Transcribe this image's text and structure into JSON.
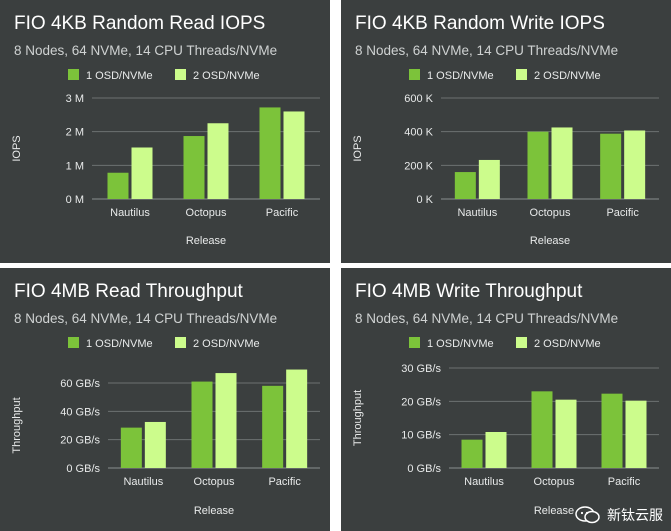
{
  "colors": {
    "panel_bg": "#3b3f3f",
    "series1": "#7cc33a",
    "series2": "#ccfc8c"
  },
  "watermark": {
    "text": "新钛云服"
  },
  "chart_data": [
    {
      "type": "bar",
      "title": "FIO 4KB Random Read IOPS",
      "subtitle": "8 Nodes, 64 NVMe, 14 CPU Threads/NVMe",
      "xlabel": "Release",
      "ylabel": "IOPS",
      "categories": [
        "Nautilus",
        "Octopus",
        "Pacific"
      ],
      "ylim": [
        0,
        3000000
      ],
      "yticks": [
        0,
        1000000,
        2000000,
        3000000
      ],
      "ytick_labels": [
        "0 M",
        "1 M",
        "2 M",
        "3 M"
      ],
      "grid": true,
      "legend": "top",
      "series": [
        {
          "name": "1 OSD/NVMe",
          "values": [
            780000,
            1870000,
            2720000
          ]
        },
        {
          "name": "2 OSD/NVMe",
          "values": [
            1530000,
            2250000,
            2600000
          ]
        }
      ]
    },
    {
      "type": "bar",
      "title": "FIO 4KB Random Write IOPS",
      "subtitle": "8 Nodes, 64 NVMe, 14 CPU Threads/NVMe",
      "xlabel": "Release",
      "ylabel": "IOPS",
      "categories": [
        "Nautilus",
        "Octopus",
        "Pacific"
      ],
      "ylim": [
        0,
        600000
      ],
      "yticks": [
        0,
        200000,
        400000,
        600000
      ],
      "ytick_labels": [
        "0 K",
        "200 K",
        "400 K",
        "600 K"
      ],
      "grid": true,
      "legend": "top",
      "series": [
        {
          "name": "1 OSD/NVMe",
          "values": [
            160000,
            400000,
            388000
          ]
        },
        {
          "name": "2 OSD/NVMe",
          "values": [
            232000,
            425000,
            407000
          ]
        }
      ]
    },
    {
      "type": "bar",
      "title": "FIO 4MB Read Throughput",
      "subtitle": "8 Nodes, 64 NVMe, 14 CPU Threads/NVMe",
      "xlabel": "Release",
      "ylabel": "Throughput",
      "categories": [
        "Nautilus",
        "Octopus",
        "Pacific"
      ],
      "ylim": [
        0,
        60
      ],
      "yticks": [
        0,
        20,
        40,
        60
      ],
      "ytick_labels": [
        "0 GB/s",
        "20 GB/s",
        "40 GB/s",
        "60 GB/s"
      ],
      "grid": true,
      "legend": "top",
      "series": [
        {
          "name": "1 OSD/NVMe",
          "values": [
            28.5,
            61,
            58
          ]
        },
        {
          "name": "2 OSD/NVMe",
          "values": [
            32.5,
            67,
            69.5
          ]
        }
      ]
    },
    {
      "type": "bar",
      "title": "FIO 4MB Write Throughput",
      "subtitle": "8 Nodes, 64 NVMe, 14 CPU Threads/NVMe",
      "xlabel": "Release",
      "ylabel": "Throughput",
      "categories": [
        "Nautilus",
        "Octopus",
        "Pacific"
      ],
      "ylim": [
        0,
        30
      ],
      "yticks": [
        0,
        10,
        20,
        30
      ],
      "ytick_labels": [
        "0 GB/s",
        "10 GB/s",
        "20 GB/s",
        "30 GB/s"
      ],
      "grid": true,
      "legend": "top",
      "series": [
        {
          "name": "1 OSD/NVMe",
          "values": [
            8.5,
            23,
            22.3
          ]
        },
        {
          "name": "2 OSD/NVMe",
          "values": [
            10.8,
            20.5,
            20.2
          ]
        }
      ]
    }
  ]
}
